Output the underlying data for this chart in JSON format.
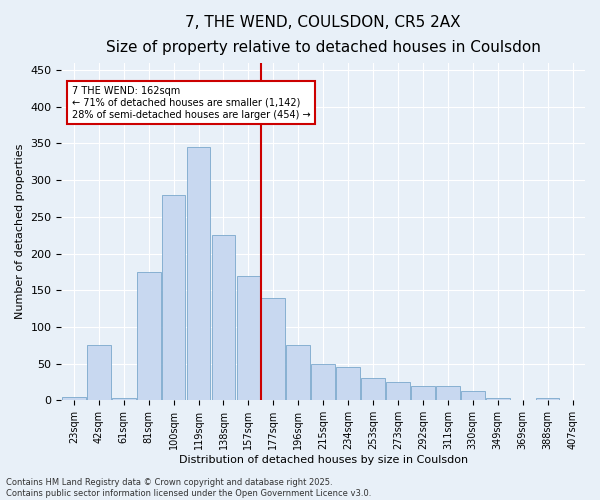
{
  "title": "7, THE WEND, COULSDON, CR5 2AX",
  "subtitle": "Size of property relative to detached houses in Coulsdon",
  "xlabel": "Distribution of detached houses by size in Coulsdon",
  "ylabel": "Number of detached properties",
  "categories": [
    "23sqm",
    "42sqm",
    "61sqm",
    "81sqm",
    "100sqm",
    "119sqm",
    "138sqm",
    "157sqm",
    "177sqm",
    "196sqm",
    "215sqm",
    "234sqm",
    "253sqm",
    "273sqm",
    "292sqm",
    "311sqm",
    "330sqm",
    "349sqm",
    "369sqm",
    "388sqm",
    "407sqm"
  ],
  "values": [
    5,
    75,
    3,
    175,
    280,
    345,
    225,
    170,
    140,
    75,
    50,
    45,
    30,
    25,
    20,
    20,
    13,
    3,
    0,
    3,
    0
  ],
  "bar_color": "#c8d8f0",
  "bar_edge_color": "#7aa8cc",
  "vline_color": "#cc0000",
  "annotation_text": "7 THE WEND: 162sqm\n← 71% of detached houses are smaller (1,142)\n28% of semi-detached houses are larger (454) →",
  "annotation_box_color": "#ffffff",
  "annotation_box_edge": "#cc0000",
  "footer_line1": "Contains HM Land Registry data © Crown copyright and database right 2025.",
  "footer_line2": "Contains public sector information licensed under the Open Government Licence v3.0.",
  "ylim": [
    0,
    460
  ],
  "yticks": [
    0,
    50,
    100,
    150,
    200,
    250,
    300,
    350,
    400,
    450
  ],
  "background_color": "#e8f0f8",
  "plot_background": "#e8f0f8",
  "title_fontsize": 11,
  "subtitle_fontsize": 9,
  "tick_fontsize": 7,
  "axis_label_fontsize": 8,
  "footer_fontsize": 6,
  "vline_xindex": 7.5
}
